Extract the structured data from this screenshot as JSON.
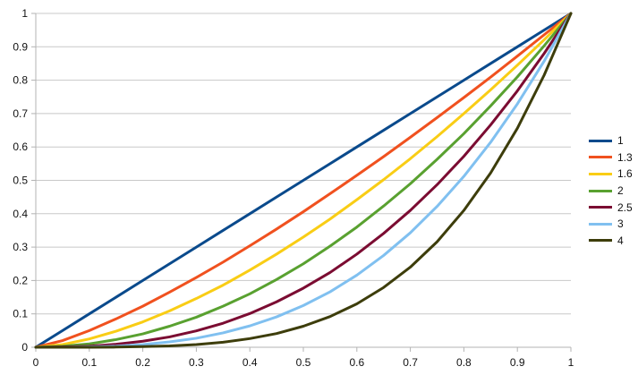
{
  "chart_data": {
    "type": "line",
    "title": "",
    "xlabel": "",
    "ylabel": "",
    "xlim": [
      0,
      1
    ],
    "ylim": [
      0,
      1
    ],
    "grid": "horizontal",
    "legend_position": "right",
    "x_ticks": [
      "0",
      "0.1",
      "0.2",
      "0.3",
      "0.4",
      "0.5",
      "0.6",
      "0.7",
      "0.8",
      "0.9",
      "1"
    ],
    "y_ticks": [
      "0",
      "0.1",
      "0.2",
      "0.3",
      "0.4",
      "0.5",
      "0.6",
      "0.7",
      "0.8",
      "0.9",
      "1"
    ],
    "x": [
      0,
      0.05,
      0.1,
      0.15,
      0.2,
      0.25,
      0.3,
      0.35,
      0.4,
      0.45,
      0.5,
      0.55,
      0.6,
      0.65,
      0.7,
      0.75,
      0.8,
      0.85,
      0.9,
      0.95,
      1
    ],
    "series": [
      {
        "name": "1",
        "color": "#0a4a8c",
        "values": [
          0,
          0.05,
          0.1,
          0.15,
          0.2,
          0.25,
          0.3,
          0.35,
          0.4,
          0.45,
          0.5,
          0.55,
          0.6,
          0.65,
          0.7,
          0.75,
          0.8,
          0.85,
          0.9,
          0.95,
          1
        ]
      },
      {
        "name": "1.3",
        "color": "#f0511f",
        "values": [
          0,
          0.02,
          0.05,
          0.085,
          0.123,
          0.165,
          0.209,
          0.255,
          0.304,
          0.354,
          0.406,
          0.46,
          0.515,
          0.571,
          0.629,
          0.688,
          0.748,
          0.809,
          0.872,
          0.936,
          1
        ]
      },
      {
        "name": "1.6",
        "color": "#f9cd15",
        "values": [
          0,
          0.008,
          0.025,
          0.048,
          0.076,
          0.109,
          0.146,
          0.186,
          0.231,
          0.279,
          0.33,
          0.384,
          0.442,
          0.502,
          0.565,
          0.631,
          0.7,
          0.771,
          0.845,
          0.921,
          1
        ]
      },
      {
        "name": "2",
        "color": "#59a130",
        "values": [
          0,
          0.003,
          0.01,
          0.023,
          0.04,
          0.063,
          0.09,
          0.123,
          0.16,
          0.203,
          0.25,
          0.303,
          0.36,
          0.423,
          0.49,
          0.563,
          0.64,
          0.723,
          0.81,
          0.903,
          1
        ]
      },
      {
        "name": "2.5",
        "color": "#7b0c32",
        "values": [
          0,
          0.001,
          0.003,
          0.009,
          0.018,
          0.031,
          0.049,
          0.072,
          0.101,
          0.136,
          0.177,
          0.224,
          0.279,
          0.341,
          0.41,
          0.487,
          0.572,
          0.666,
          0.768,
          0.88,
          1
        ]
      },
      {
        "name": "3",
        "color": "#80c0f0",
        "values": [
          0,
          0.0001,
          0.001,
          0.003,
          0.008,
          0.016,
          0.027,
          0.043,
          0.064,
          0.091,
          0.125,
          0.166,
          0.216,
          0.275,
          0.343,
          0.422,
          0.512,
          0.614,
          0.729,
          0.857,
          1
        ]
      },
      {
        "name": "4",
        "color": "#3d3d0b",
        "values": [
          0,
          0,
          0.0001,
          0.0005,
          0.002,
          0.004,
          0.008,
          0.015,
          0.026,
          0.041,
          0.063,
          0.092,
          0.13,
          0.179,
          0.24,
          0.316,
          0.41,
          0.522,
          0.656,
          0.815,
          1
        ]
      }
    ]
  }
}
